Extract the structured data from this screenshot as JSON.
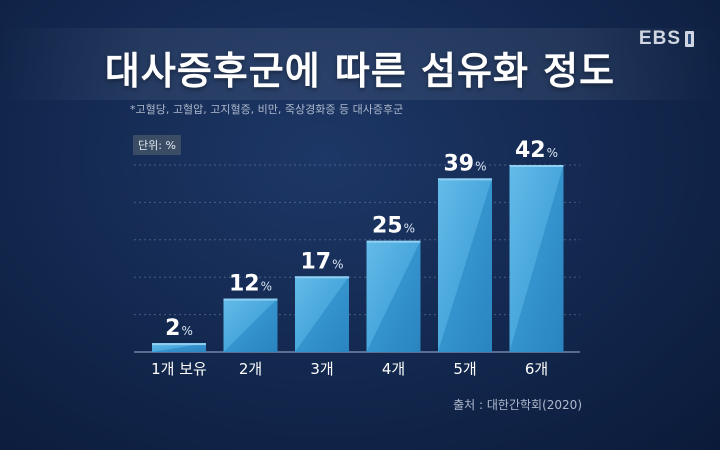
{
  "header": {
    "title": "대사증후군에 따른 섬유화 정도",
    "logo_text": "EBS"
  },
  "footnote": "*고혈당, 고혈압, 고지혈증, 비만, 죽상경화증 등 대사증후군",
  "unit_label": "단위: %",
  "source": "출처 : 대한간학회(2020)",
  "colors": {
    "background": "#142a52",
    "bar_light": "#5fb6e6",
    "bar_dark": "#2d8cc4",
    "grid": "#6f86a8"
  },
  "chart_data": {
    "type": "bar",
    "categories": [
      "1개 보유",
      "2개",
      "3개",
      "4개",
      "5개",
      "6개"
    ],
    "values": [
      2,
      12,
      17,
      25,
      39,
      42
    ],
    "value_suffix": "%",
    "ylim": [
      0,
      42
    ],
    "grid": true
  }
}
